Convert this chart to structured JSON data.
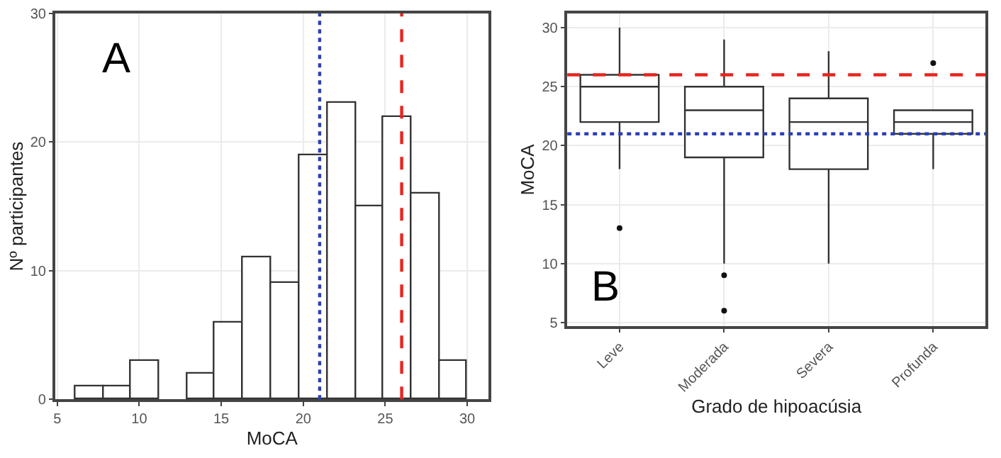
{
  "chart_data": [
    {
      "type": "histogram",
      "xlabel": "MoCA",
      "ylabel": "Nº participantes",
      "annotations": [
        "A"
      ],
      "bins": [
        6.1,
        7.8,
        9.5,
        11.2,
        12.9,
        14.6,
        16.3,
        18.0,
        19.8,
        21.5,
        23.2,
        24.9,
        26.6,
        28.3,
        30.0
      ],
      "values": [
        1,
        1,
        3,
        0,
        2,
        6,
        11,
        9,
        19,
        23,
        15,
        22,
        16,
        3
      ],
      "color": "#ffffff",
      "xlim": [
        4.9,
        31.3
      ],
      "xticks": [
        5,
        10,
        15,
        20,
        25,
        30
      ],
      "ylim": [
        0,
        30
      ],
      "yticks": [
        0,
        10,
        20,
        30
      ],
      "grid": true,
      "ref_lines": [
        {
          "axis": "x",
          "value": 21,
          "color": "#2b3fb8",
          "line_style": "dotted"
        },
        {
          "axis": "x",
          "value": 26,
          "color": "#e8251f",
          "line_style": "dashed"
        }
      ]
    },
    {
      "type": "box",
      "xlabel": "Grado de hipoacúsia",
      "ylabel": "MoCA",
      "annotations": [
        "B"
      ],
      "categories": [
        "Leve",
        "Moderada",
        "Severa",
        "Profunda"
      ],
      "boxes": [
        {
          "low": 18,
          "q1": 22,
          "median": 25,
          "q3": 26,
          "high": 30,
          "outliers": [
            13
          ]
        },
        {
          "low": 10,
          "q1": 19,
          "median": 23,
          "q3": 25,
          "high": 29,
          "outliers": [
            9,
            6
          ]
        },
        {
          "low": 10,
          "q1": 18,
          "median": 22,
          "q3": 24,
          "high": 28
        },
        {
          "low": 18,
          "q1": 21,
          "median": 22,
          "q3": 23,
          "high": 23,
          "outliers": [
            27
          ]
        }
      ],
      "ylim": [
        4.7,
        31.2
      ],
      "yticks": [
        5,
        10,
        15,
        20,
        25,
        30
      ],
      "grid": true,
      "ref_lines": [
        {
          "axis": "y",
          "value": 26,
          "color": "#e8251f",
          "line_style": "dashed"
        },
        {
          "axis": "y",
          "value": 21,
          "color": "#2b3fb8",
          "line_style": "dotted"
        }
      ]
    }
  ]
}
